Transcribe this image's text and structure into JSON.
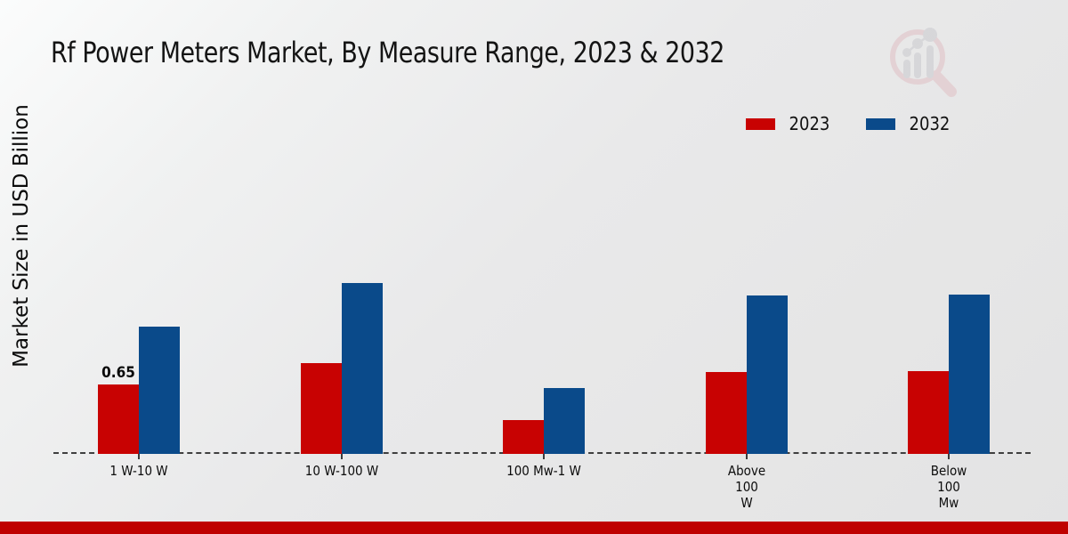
{
  "chart_data": {
    "type": "bar",
    "title": "Rf Power Meters Market, By Measure Range, 2023 & 2032",
    "ylabel": "Market Size in USD Billion",
    "xlabel": "",
    "categories": [
      "1 W-10 W",
      "10 W-100 W",
      "100 Mw-1 W",
      "Above\n100\nW",
      "Below\n100\nMw"
    ],
    "series": [
      {
        "name": "2023",
        "color": "#c80202",
        "values": [
          0.65,
          0.85,
          0.31,
          0.77,
          0.78
        ]
      },
      {
        "name": "2032",
        "color": "#0a4a8a",
        "values": [
          1.2,
          1.61,
          0.62,
          1.49,
          1.5
        ]
      }
    ],
    "annotations": [
      {
        "series": "2023",
        "category_index": 0,
        "text": "0.65"
      }
    ],
    "ylim": [
      0,
      2.0
    ],
    "grid": false,
    "legend_position": "top-right",
    "baseline_style": "dashed"
  },
  "legend": {
    "items": [
      {
        "label": "2023",
        "color": "#c80202"
      },
      {
        "label": "2032",
        "color": "#0a4a8a"
      }
    ]
  },
  "watermark": {
    "icon": "market-research-future-logo",
    "ring_color": "#e0bcc1",
    "bars_color": "#c7c7cc"
  },
  "footer": {
    "accent_color": "#bf0100"
  }
}
